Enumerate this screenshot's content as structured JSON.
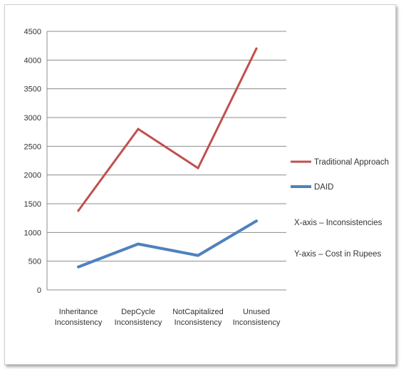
{
  "chart_data": {
    "type": "line",
    "title": "",
    "xlabel": "",
    "ylabel": "",
    "categories": [
      [
        "Inheritance",
        "Inconsistency"
      ],
      [
        "DepCycle",
        "Inconsistency"
      ],
      [
        "NotCapitalized",
        "Inconsistency"
      ],
      [
        "Unused",
        "Inconsistency"
      ]
    ],
    "series": [
      {
        "name": "Traditional Approach",
        "color": "#c0504d",
        "values": [
          1380,
          2800,
          2120,
          4200
        ]
      },
      {
        "name": "DAID",
        "color": "#4f81bd",
        "values": [
          400,
          800,
          600,
          1200
        ]
      }
    ],
    "ylim": [
      0,
      4500
    ],
    "yticks": [
      0,
      500,
      1000,
      1500,
      2000,
      2500,
      3000,
      3500,
      4000,
      4500
    ],
    "grid": true,
    "legend_position": "right",
    "annotations": [
      "X-axis – Inconsistencies",
      "Y-axis – Cost in Rupees"
    ]
  }
}
